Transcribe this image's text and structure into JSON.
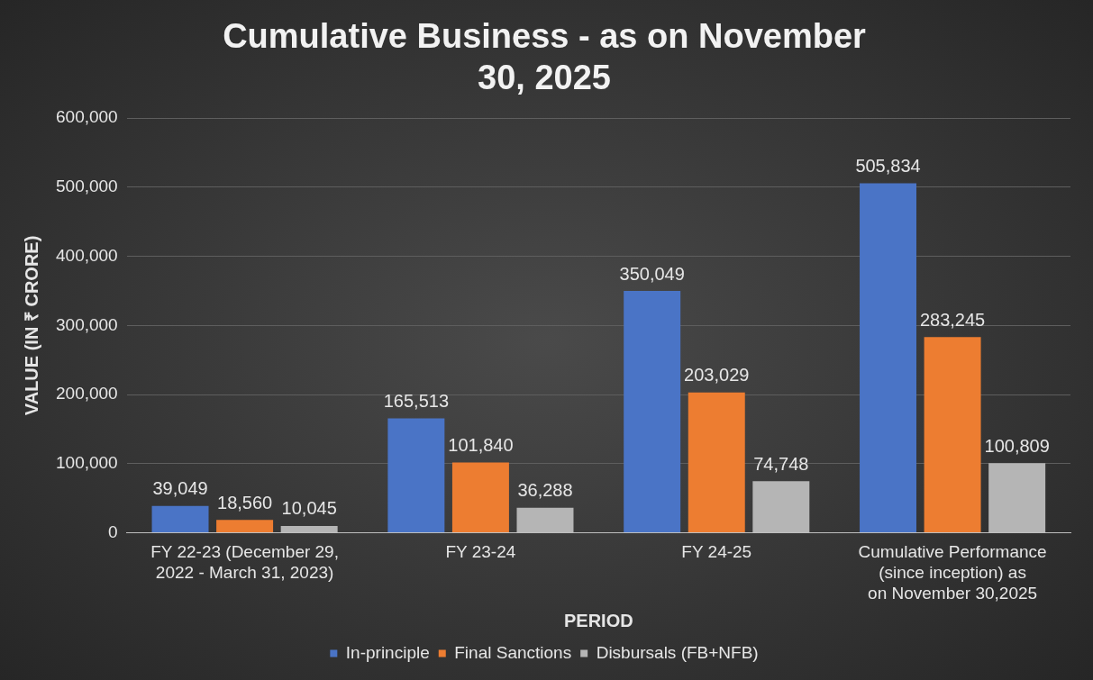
{
  "chart_data": {
    "type": "bar",
    "title": "Cumulative Business - as on November 30, 2025",
    "xlabel": "PERIOD",
    "ylabel": "VALUE (IN ₹ CRORE)",
    "categories": [
      "FY 22-23 (December 29, 2022 - March 31, 2023)",
      "FY 23-24",
      "FY 24-25",
      "Cumulative Performance (since inception) as on November 30,2025"
    ],
    "series": [
      {
        "name": "In-principle",
        "color": "#4a74c6",
        "values": [
          39049,
          165513,
          350049,
          505834
        ],
        "value_labels": [
          "39,049",
          "165,513",
          "350,049",
          "505,834"
        ]
      },
      {
        "name": "Final Sanctions",
        "color": "#ed7d31",
        "values": [
          18560,
          101840,
          203029,
          283245
        ],
        "value_labels": [
          "18,560",
          "101,840",
          "203,029",
          "283,245"
        ]
      },
      {
        "name": "Disbursals (FB+NFB)",
        "color": "#b5b5b5",
        "values": [
          10045,
          36288,
          74748,
          100809
        ],
        "value_labels": [
          "10,045",
          "36,288",
          "74,748",
          "100,809"
        ]
      }
    ],
    "ylim": [
      0,
      600000
    ],
    "yticks": [
      0,
      {
        "value": 100000,
        "label": "100,000"
      },
      {
        "value": 200000,
        "label": "200,000"
      },
      {
        "value": 300000,
        "label": "300,000"
      },
      {
        "value": 400000,
        "label": "400,000"
      },
      {
        "value": 500000,
        "label": "500,000"
      },
      {
        "value": 600000,
        "label": "600,000"
      }
    ],
    "grid": "y",
    "legend": "bottom"
  }
}
